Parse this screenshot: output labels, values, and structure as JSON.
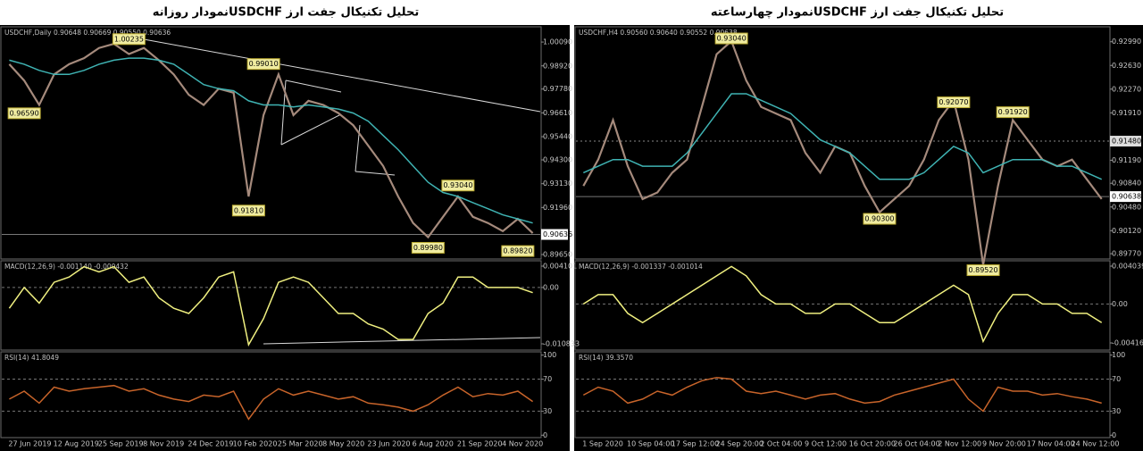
{
  "chart_data": [
    {
      "type": "line",
      "title": "تحلیل تکنیکال جفت ارز USDCHFنمودار روزانه",
      "categories": [
        "27 Jun 2019",
        null,
        null,
        "12 Aug 2019",
        null,
        null,
        "25 Sep 2019",
        null,
        null,
        "8 Nov 2019",
        null,
        null,
        "24 Dec 2019",
        null,
        null,
        "10 Feb 2020",
        null,
        null,
        "25 Mar 2020",
        null,
        null,
        "8 May 2020",
        null,
        null,
        "23 Jun 2020",
        null,
        null,
        "6 Aug 2020",
        null,
        null,
        "21 Sep 2020",
        null,
        null,
        "4 Nov 2020",
        null,
        null
      ],
      "panels": [
        {
          "header": "USDCHF,Daily  0.90648 0.90669 0.90550 0.90636",
          "ylim": [
            0.8943,
            1.0084
          ],
          "yticks": [
            {
              "value": 1.0009,
              "label": "1.00090"
            },
            {
              "value": 0.9892,
              "label": "0.98920"
            },
            {
              "value": 0.9778,
              "label": "0.97780"
            },
            {
              "value": 0.9661,
              "label": "0.96610"
            },
            {
              "value": 0.9544,
              "label": "0.95440"
            },
            {
              "value": 0.943,
              "label": "0.94300"
            },
            {
              "value": 0.9313,
              "label": "0.93130"
            },
            {
              "value": 0.9196,
              "label": "0.91960"
            },
            {
              "value": 0.8965,
              "label": "0.89650"
            }
          ],
          "last": 0.90636,
          "series": [
            {
              "color": "#a58a7c",
              "values": [
                0.99,
                0.982,
                0.97,
                0.985,
                0.99,
                0.993,
                0.998,
                1.0,
                0.995,
                0.998,
                0.992,
                0.985,
                0.975,
                0.97,
                0.978,
                0.976,
                0.925,
                0.965,
                0.985,
                0.965,
                0.972,
                0.97,
                0.966,
                0.96,
                0.95,
                0.94,
                0.925,
                0.912,
                0.905,
                0.915,
                0.925,
                0.915,
                0.912,
                0.908,
                0.914,
                0.907
              ]
            },
            {
              "color": "#3fb3b3",
              "values": [
                0.992,
                0.99,
                0.987,
                0.985,
                0.985,
                0.987,
                0.99,
                0.992,
                0.993,
                0.993,
                0.992,
                0.99,
                0.985,
                0.98,
                0.978,
                0.977,
                0.972,
                0.97,
                0.97,
                0.969,
                0.97,
                0.969,
                0.968,
                0.966,
                0.962,
                0.955,
                0.948,
                0.94,
                0.932,
                0.927,
                0.925,
                0.922,
                0.919,
                0.916,
                0.914,
                0.912
              ]
            }
          ],
          "annotations": [
            {
              "at": 8,
              "value": 1.00235,
              "label": "1.00235"
            },
            {
              "at": 1,
              "value": 0.9659,
              "label": "0.96590"
            },
            {
              "at": 17,
              "value": 0.9901,
              "label": "0.99010"
            },
            {
              "at": 16,
              "value": 0.9181,
              "label": "0.91810"
            },
            {
              "at": 30,
              "value": 0.9304,
              "label": "0.93040"
            },
            {
              "at": 28,
              "value": 0.8998,
              "label": "0.89980"
            },
            {
              "at": 34,
              "value": 0.8982,
              "label": "0.89820"
            }
          ]
        },
        {
          "header": "MACD(12,26,9) -0.001140 -0.000432",
          "ylim": [
            -0.012035,
            0.005131
          ],
          "yticks": [
            0.004101,
            {
              "value": 0,
              "label": "0.00"
            },
            -0.010833
          ],
          "levels": [
            0
          ],
          "series": [
            {
              "color": "#f0f080",
              "values": [
                -0.004,
                0.0,
                -0.003,
                0.001,
                0.002,
                0.004,
                0.003,
                0.004,
                0.001,
                0.002,
                -0.002,
                -0.004,
                -0.005,
                -0.002,
                0.002,
                0.003,
                -0.011,
                -0.006,
                0.001,
                0.002,
                0.001,
                -0.002,
                -0.005,
                -0.005,
                -0.007,
                -0.008,
                -0.01,
                -0.01,
                -0.005,
                -0.003,
                0.002,
                0.002,
                0.0,
                0.0,
                0.0,
                -0.001
              ]
            }
          ]
        },
        {
          "header": "RSI(14) 41.8049",
          "ylim": [
            -3,
            104
          ],
          "yticks": [
            100,
            70,
            30,
            0
          ],
          "levels": [
            70,
            30
          ],
          "series": [
            {
              "color": "#c8642a",
              "values": [
                45,
                55,
                40,
                60,
                55,
                58,
                60,
                62,
                55,
                58,
                50,
                45,
                42,
                50,
                48,
                55,
                20,
                45,
                58,
                50,
                55,
                50,
                45,
                48,
                40,
                38,
                35,
                30,
                38,
                50,
                60,
                48,
                52,
                50,
                55,
                42
              ]
            }
          ]
        }
      ]
    },
    {
      "type": "line",
      "title": "تحلیل تکنیکال جفت ارز USDCHFنمودار چهارساعته",
      "categories": [
        "1 Sep 2020",
        null,
        null,
        "10 Sep 04:00",
        null,
        null,
        "17 Sep 12:00",
        null,
        null,
        "24 Sep 20:00",
        null,
        null,
        "2 Oct 04:00",
        null,
        null,
        "9 Oct 12:00",
        null,
        null,
        "16 Oct 20:00",
        null,
        null,
        "26 Oct 04:00",
        null,
        null,
        "2 Nov 12:00",
        null,
        null,
        "9 Nov 20:00",
        null,
        null,
        "17 Nov 04:00",
        null,
        null,
        "24 Nov 12:00",
        null,
        null
      ],
      "panels": [
        {
          "header": "USDCHF,H4  0.90560 0.90640 0.90552 0.90638",
          "ylim": [
            0.8969,
            0.93217
          ],
          "yticks": [
            {
              "value": 0.9299,
              "label": "0.92990"
            },
            {
              "value": 0.9263,
              "label": "0.92630"
            },
            {
              "value": 0.9227,
              "label": "0.92270"
            },
            {
              "value": 0.9191,
              "label": "0.91910"
            },
            {
              "value": 0.9119,
              "label": "0.91190"
            },
            {
              "value": 0.9084,
              "label": "0.90840"
            },
            {
              "value": 0.9048,
              "label": "0.90480"
            },
            {
              "value": 0.9012,
              "label": "0.90120"
            },
            {
              "value": 0.8977,
              "label": "0.89770"
            }
          ],
          "last": 0.90638,
          "level_tag": {
            "value": 0.9148,
            "label": "0.91480"
          },
          "series": [
            {
              "color": "#a58a7c",
              "values": [
                0.908,
                0.912,
                0.918,
                0.911,
                0.906,
                0.907,
                0.91,
                0.912,
                0.92,
                0.928,
                0.93,
                0.924,
                0.92,
                0.919,
                0.918,
                0.913,
                0.91,
                0.914,
                0.913,
                0.908,
                0.904,
                0.906,
                0.908,
                0.912,
                0.918,
                0.921,
                0.912,
                0.896,
                0.908,
                0.918,
                0.915,
                0.912,
                0.911,
                0.912,
                0.909,
                0.906
              ]
            },
            {
              "color": "#3fb3b3",
              "values": [
                0.91,
                0.911,
                0.912,
                0.912,
                0.911,
                0.911,
                0.911,
                0.913,
                0.916,
                0.919,
                0.922,
                0.922,
                0.921,
                0.92,
                0.919,
                0.917,
                0.915,
                0.914,
                0.913,
                0.911,
                0.909,
                0.909,
                0.909,
                0.91,
                0.912,
                0.914,
                0.913,
                0.91,
                0.911,
                0.912,
                0.912,
                0.912,
                0.911,
                0.911,
                0.91,
                0.909
              ]
            }
          ],
          "annotations": [
            {
              "at": 10,
              "value": 0.9304,
              "label": "0.93040"
            },
            {
              "at": 25,
              "value": 0.9207,
              "label": "0.92070"
            },
            {
              "at": 29,
              "value": 0.9192,
              "label": "0.91920"
            },
            {
              "at": 20,
              "value": 0.903,
              "label": "0.90300"
            },
            {
              "at": 27,
              "value": 0.8952,
              "label": "0.89520"
            }
          ]
        },
        {
          "header": "MACD(12,26,9) -0.001337 -0.001014",
          "ylim": [
            -0.004922,
            0.004611
          ],
          "yticks": [
            0.004039,
            {
              "value": 0,
              "label": "0.00"
            },
            -0.00416
          ],
          "levels": [
            0
          ],
          "series": [
            {
              "color": "#f0f080",
              "values": [
                0.0,
                0.001,
                0.001,
                -0.001,
                -0.002,
                -0.001,
                0.0,
                0.001,
                0.002,
                0.003,
                0.004,
                0.003,
                0.001,
                0.0,
                0.0,
                -0.001,
                -0.001,
                0.0,
                0.0,
                -0.001,
                -0.002,
                -0.002,
                -0.001,
                0.0,
                0.001,
                0.002,
                0.001,
                -0.004,
                -0.001,
                0.001,
                0.001,
                0.0,
                0.0,
                -0.001,
                -0.001,
                -0.002
              ]
            }
          ]
        },
        {
          "header": "RSI(14) 39.3570",
          "ylim": [
            -3,
            104
          ],
          "yticks": [
            100,
            70,
            30,
            0
          ],
          "levels": [
            70,
            30
          ],
          "series": [
            {
              "color": "#c8642a",
              "values": [
                50,
                60,
                55,
                40,
                45,
                55,
                50,
                60,
                68,
                72,
                70,
                55,
                52,
                55,
                50,
                45,
                50,
                52,
                45,
                40,
                42,
                50,
                55,
                60,
                65,
                70,
                45,
                30,
                60,
                55,
                55,
                50,
                52,
                48,
                45,
                40
              ]
            }
          ]
        }
      ]
    }
  ]
}
